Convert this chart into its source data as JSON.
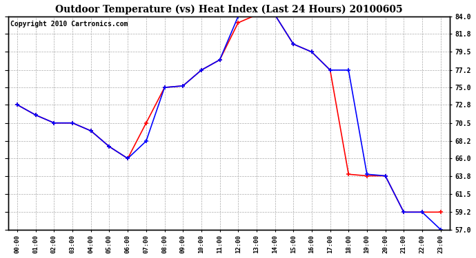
{
  "title": "Outdoor Temperature (vs) Heat Index (Last 24 Hours) 20100605",
  "copyright": "Copyright 2010 Cartronics.com",
  "x_labels": [
    "00:00",
    "01:00",
    "02:00",
    "03:00",
    "04:00",
    "05:00",
    "06:00",
    "07:00",
    "08:00",
    "09:00",
    "10:00",
    "11:00",
    "12:00",
    "13:00",
    "14:00",
    "15:00",
    "16:00",
    "17:00",
    "18:00",
    "19:00",
    "20:00",
    "21:00",
    "22:00",
    "23:00"
  ],
  "temp_data": [
    72.8,
    71.5,
    70.5,
    70.5,
    69.5,
    67.5,
    66.0,
    70.5,
    75.0,
    75.2,
    77.2,
    78.5,
    83.2,
    84.2,
    84.2,
    80.5,
    79.5,
    77.2,
    64.0,
    63.8,
    63.8,
    59.2,
    59.2,
    59.2
  ],
  "heat_index_data": [
    72.8,
    71.5,
    70.5,
    70.5,
    69.5,
    67.5,
    66.0,
    68.2,
    75.0,
    75.2,
    77.2,
    78.5,
    84.0,
    84.2,
    84.2,
    80.5,
    79.5,
    77.2,
    77.2,
    64.0,
    63.8,
    59.2,
    59.2,
    57.0
  ],
  "temp_color": "#FF0000",
  "heat_index_color": "#0000FF",
  "ylim": [
    57.0,
    84.0
  ],
  "yticks": [
    57.0,
    59.2,
    61.5,
    63.8,
    66.0,
    68.2,
    70.5,
    72.8,
    75.0,
    77.2,
    79.5,
    81.8,
    84.0
  ],
  "background_color": "#FFFFFF",
  "grid_color": "#AAAAAA",
  "title_fontsize": 10,
  "copyright_fontsize": 7
}
